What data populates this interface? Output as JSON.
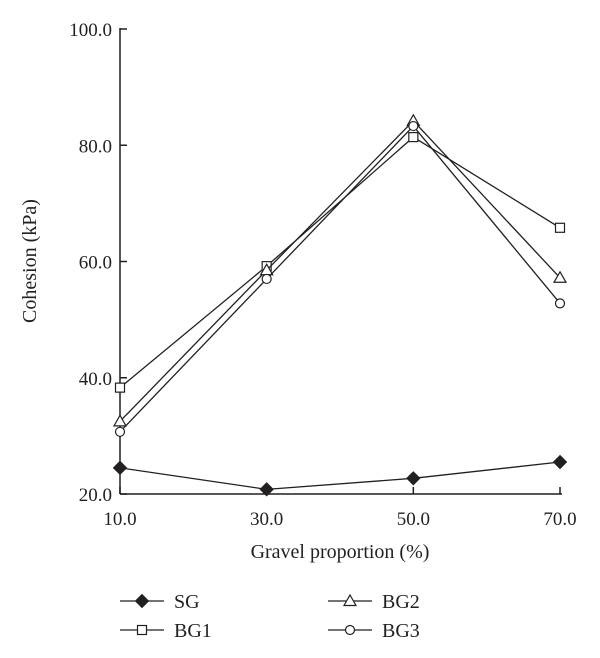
{
  "chart_data": {
    "type": "line",
    "xlabel": "Gravel proportion (%)",
    "ylabel": "Cohesion (kPa)",
    "x": [
      10,
      30,
      50,
      70
    ],
    "x_tick_labels": [
      "10.0",
      "30.0",
      "50.0",
      "70.0"
    ],
    "xlim": [
      10,
      70
    ],
    "ylim": [
      20,
      100
    ],
    "y_ticks": [
      20,
      40,
      60,
      80,
      100
    ],
    "y_tick_labels": [
      "20.0",
      "40.0",
      "60.0",
      "80.0",
      "100.0"
    ],
    "grid": false,
    "legend_position": "bottom",
    "series": [
      {
        "name": "SG",
        "marker": "filled-diamond",
        "values": [
          24.5,
          20.8,
          22.7,
          25.5
        ]
      },
      {
        "name": "BG1",
        "marker": "open-square",
        "values": [
          38.3,
          59.2,
          81.4,
          65.8
        ]
      },
      {
        "name": "BG2",
        "marker": "open-triangle",
        "values": [
          32.5,
          58.5,
          84.2,
          57.2
        ]
      },
      {
        "name": "BG3",
        "marker": "open-circle",
        "values": [
          30.7,
          57.0,
          83.3,
          52.8
        ]
      }
    ],
    "line_color": "#231f20"
  }
}
